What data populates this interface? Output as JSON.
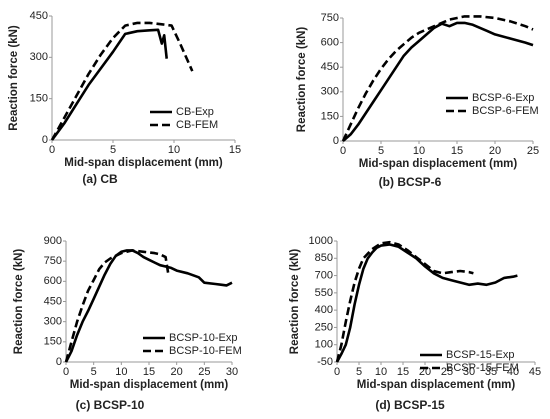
{
  "chart_data": [
    {
      "type": "line",
      "caption": "(a) CB",
      "xlabel": "Mid-span displacement (mm)",
      "ylabel": "Reaction force (kN)",
      "xlim": [
        0,
        15
      ],
      "xticks": [
        0,
        5,
        10,
        15
      ],
      "ylim": [
        0,
        450
      ],
      "yticks": [
        0,
        150,
        300,
        450
      ],
      "legend": "lower right",
      "series": [
        {
          "name": "CB-Exp",
          "color": "#000000",
          "style": "solid",
          "x": [
            0,
            1,
            2,
            3,
            4,
            5,
            6,
            7,
            8,
            8.7,
            9,
            9.2,
            9.4
          ],
          "values": [
            0,
            60,
            130,
            200,
            260,
            320,
            385,
            395,
            398,
            400,
            350,
            380,
            295
          ]
        },
        {
          "name": "CB-FEM",
          "color": "#000000",
          "style": "dashed",
          "x": [
            0,
            1,
            2,
            3,
            4,
            5,
            6,
            7,
            8,
            9,
            9.8,
            10.5,
            11.5
          ],
          "values": [
            0,
            80,
            160,
            240,
            310,
            370,
            415,
            425,
            425,
            420,
            415,
            350,
            250
          ]
        }
      ]
    },
    {
      "type": "line",
      "caption": "(b) BCSP-6",
      "xlabel": "Mid-span displacement (mm)",
      "ylabel": "Reaction force (kN)",
      "xlim": [
        0,
        25
      ],
      "xticks": [
        0,
        5,
        10,
        15,
        20,
        25
      ],
      "ylim": [
        0,
        750
      ],
      "yticks": [
        0,
        150,
        300,
        450,
        600,
        750
      ],
      "legend": "lower right",
      "series": [
        {
          "name": "BCSP-6-Exp",
          "color": "#000000",
          "style": "solid",
          "x": [
            0,
            1,
            2,
            3,
            4,
            5,
            6,
            7,
            8,
            9,
            10,
            11,
            12,
            13,
            14,
            15,
            16,
            17,
            18,
            19,
            20,
            22,
            24,
            25
          ],
          "values": [
            0,
            40,
            100,
            170,
            240,
            310,
            380,
            450,
            520,
            570,
            610,
            650,
            690,
            715,
            700,
            720,
            720,
            710,
            690,
            670,
            650,
            625,
            600,
            585
          ]
        },
        {
          "name": "BCSP-6-FEM",
          "color": "#000000",
          "style": "dashed",
          "x": [
            0,
            1,
            2,
            3,
            4,
            5,
            6,
            7,
            8,
            9,
            10,
            12,
            14,
            16,
            18,
            20,
            22,
            24,
            25
          ],
          "values": [
            0,
            100,
            200,
            290,
            370,
            440,
            500,
            550,
            590,
            630,
            660,
            700,
            740,
            760,
            760,
            750,
            730,
            700,
            680
          ]
        }
      ]
    },
    {
      "type": "line",
      "caption": "(c) BCSP-10",
      "xlabel": "Mid-span displacement (mm)",
      "ylabel": "Reaction force (kN)",
      "xlim": [
        0,
        30
      ],
      "xticks": [
        0,
        5,
        10,
        15,
        20,
        25,
        30
      ],
      "ylim": [
        0,
        900
      ],
      "yticks": [
        0,
        150,
        300,
        450,
        600,
        750,
        900
      ],
      "legend": "lower right",
      "series": [
        {
          "name": "BCSP-10-Exp",
          "color": "#000000",
          "style": "solid",
          "x": [
            0,
            1,
            2,
            3,
            4,
            5,
            6,
            7,
            8,
            9,
            10,
            11,
            12,
            13,
            14,
            15,
            16,
            17,
            18,
            19,
            20,
            22,
            24,
            25,
            27,
            28,
            29,
            30
          ],
          "values": [
            0,
            80,
            200,
            300,
            380,
            470,
            560,
            650,
            730,
            790,
            820,
            830,
            830,
            810,
            780,
            760,
            740,
            720,
            710,
            700,
            680,
            660,
            630,
            590,
            580,
            575,
            570,
            590
          ]
        },
        {
          "name": "BCSP-10-FEM",
          "color": "#000000",
          "style": "dashed",
          "x": [
            0,
            1,
            2,
            3,
            4,
            5,
            6,
            7,
            8,
            10,
            12,
            14,
            16,
            17,
            18,
            18.5
          ],
          "values": [
            0,
            150,
            300,
            420,
            530,
            610,
            690,
            740,
            770,
            810,
            830,
            820,
            810,
            800,
            780,
            650
          ]
        }
      ]
    },
    {
      "type": "line",
      "caption": "(d) BCSP-15",
      "xlabel": "Mid-span displacement (mm)",
      "ylabel": "Reaction force (kN)",
      "xlim": [
        0,
        45
      ],
      "xticks": [
        0,
        5,
        10,
        15,
        20,
        25,
        30,
        35,
        40,
        45
      ],
      "ylim": [
        -50,
        1000
      ],
      "yticks": [
        -50,
        100,
        250,
        400,
        550,
        700,
        850,
        1000
      ],
      "legend": "lower right",
      "series": [
        {
          "name": "BCSP-15-Exp",
          "color": "#000000",
          "style": "solid",
          "x": [
            0,
            1,
            2,
            3,
            4,
            5,
            6,
            7,
            8,
            9,
            10,
            12,
            14,
            16,
            18,
            20,
            22,
            24,
            26,
            28,
            30,
            32,
            34,
            36,
            38,
            40,
            41
          ],
          "values": [
            -50,
            20,
            100,
            250,
            450,
            620,
            760,
            850,
            900,
            940,
            960,
            970,
            950,
            900,
            850,
            780,
            720,
            680,
            660,
            640,
            620,
            630,
            620,
            640,
            680,
            690,
            700
          ]
        },
        {
          "name": "BCSP-15-FEM",
          "color": "#000000",
          "style": "dashed",
          "x": [
            0,
            1,
            2,
            3,
            4,
            5,
            6,
            8,
            10,
            12,
            14,
            16,
            18,
            20,
            22,
            24,
            26,
            28,
            30,
            31
          ],
          "values": [
            -50,
            100,
            300,
            480,
            640,
            760,
            850,
            930,
            980,
            990,
            970,
            920,
            860,
            800,
            740,
            720,
            730,
            740,
            730,
            720
          ]
        }
      ]
    }
  ]
}
